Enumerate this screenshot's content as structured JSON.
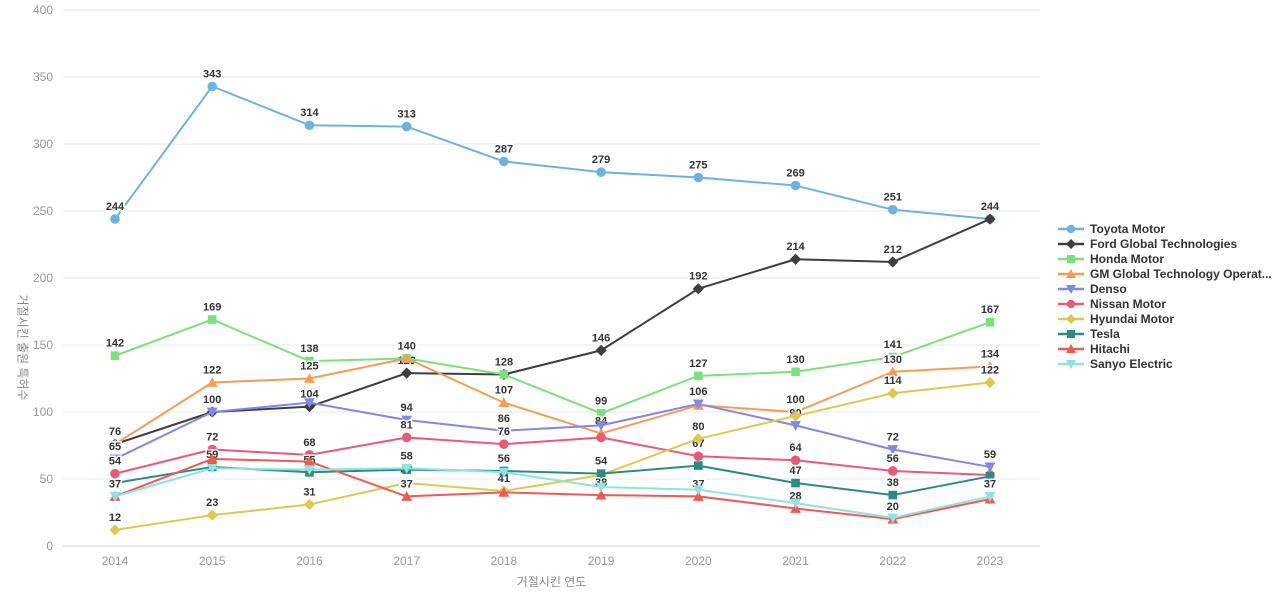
{
  "chart_data": {
    "type": "line",
    "title": "",
    "xlabel": "거절시킨 연도",
    "ylabel": "거절시킨 출원 특허수",
    "x": [
      "2014",
      "2015",
      "2016",
      "2017",
      "2018",
      "2019",
      "2020",
      "2021",
      "2022",
      "2023"
    ],
    "ylim": [
      0,
      400
    ],
    "ytick_interval": 50,
    "yticks": [
      0,
      50,
      100,
      150,
      200,
      250,
      300,
      350,
      400
    ],
    "grid": true,
    "legend_position": "right",
    "series": [
      {
        "name": "Toyota Motor",
        "color": "#6eb2e2",
        "symbol": "circle",
        "values": [
          244,
          343,
          314,
          313,
          287,
          279,
          275,
          269,
          251,
          244
        ],
        "labels": [
          244,
          343,
          314,
          313,
          287,
          279,
          275,
          269,
          251,
          244
        ]
      },
      {
        "name": "Ford Global Technologies",
        "color": "#3d3d42",
        "symbol": "diamond",
        "values": [
          76,
          100,
          104,
          129,
          128,
          146,
          192,
          214,
          212,
          244
        ],
        "labels": [
          76,
          100,
          104,
          129,
          null,
          146,
          192,
          214,
          212,
          null
        ]
      },
      {
        "name": "Honda Motor",
        "color": "#7de07d",
        "symbol": "square",
        "values": [
          142,
          169,
          138,
          140,
          128,
          99,
          127,
          130,
          141,
          167
        ],
        "labels": [
          142,
          169,
          138,
          null,
          128,
          99,
          127,
          130,
          141,
          167
        ]
      },
      {
        "name": "GM Global Technology Operat...",
        "color": "#f79b57",
        "symbol": "triangle",
        "values": [
          76,
          122,
          125,
          140,
          107,
          84,
          105,
          100,
          130,
          134
        ],
        "labels": [
          null,
          122,
          125,
          140,
          107,
          84,
          null,
          100,
          130,
          134
        ]
      },
      {
        "name": "Denso",
        "color": "#8387e6",
        "symbol": "triangle-down",
        "values": [
          65,
          100,
          107,
          94,
          86,
          90,
          106,
          90,
          72,
          59
        ],
        "labels": [
          65,
          null,
          null,
          94,
          86,
          null,
          106,
          90,
          72,
          59
        ]
      },
      {
        "name": "Nissan Motor",
        "color": "#e85a78",
        "symbol": "circle",
        "values": [
          54,
          72,
          68,
          81,
          76,
          81,
          67,
          64,
          56,
          53
        ],
        "labels": [
          54,
          72,
          68,
          81,
          76,
          null,
          67,
          64,
          56,
          null
        ]
      },
      {
        "name": "Hyundai Motor",
        "color": "#ddc850",
        "symbol": "diamond",
        "values": [
          12,
          23,
          31,
          47,
          41,
          53,
          80,
          97,
          114,
          122
        ],
        "labels": [
          12,
          23,
          31,
          47,
          41,
          null,
          80,
          null,
          114,
          122
        ]
      },
      {
        "name": "Tesla",
        "color": "#2b8b84",
        "symbol": "square",
        "values": [
          47,
          59,
          55,
          57,
          56,
          54,
          60,
          47,
          38,
          52
        ],
        "labels": [
          null,
          59,
          55,
          null,
          56,
          54,
          null,
          47,
          38,
          null
        ]
      },
      {
        "name": "Hitachi",
        "color": "#ef5a55",
        "symbol": "triangle",
        "values": [
          37,
          65,
          63,
          37,
          40,
          38,
          37,
          28,
          20,
          35
        ],
        "labels": [
          37,
          null,
          null,
          37,
          null,
          38,
          37,
          28,
          20,
          null
        ]
      },
      {
        "name": "Sanyo Electric",
        "color": "#8fe5dc",
        "symbol": "triangle-down",
        "values": [
          37,
          58,
          57,
          58,
          55,
          44,
          42,
          32,
          21,
          37
        ],
        "labels": [
          null,
          null,
          null,
          58,
          null,
          null,
          null,
          null,
          null,
          37
        ]
      }
    ]
  },
  "style": {
    "axis_line_color": "#ccd6eb",
    "grid_color": "#e9e9e9",
    "tick_color": "#999999",
    "label_color": "#333333",
    "background": "#ffffff"
  }
}
